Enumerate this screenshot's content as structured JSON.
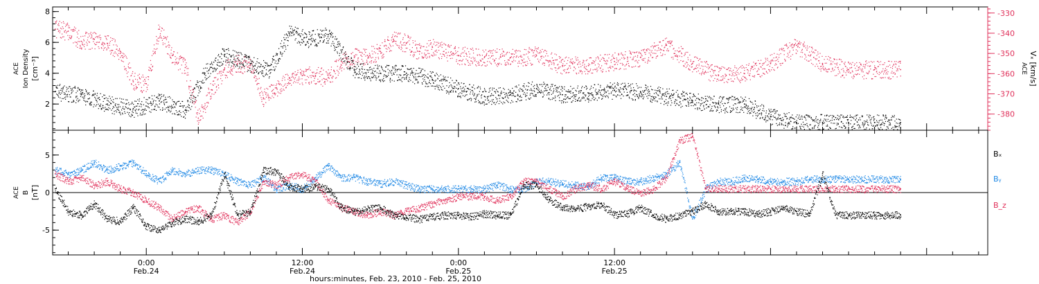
{
  "chart_data": [
    {
      "type": "scatter",
      "panel": "top",
      "ylabel": [
        "ACE",
        "Ion Density",
        "[cm⁻³]"
      ],
      "ylabel_right": [
        "ACE",
        "Vₓ [km/s]"
      ],
      "yticks": [
        2,
        4,
        6,
        8
      ],
      "ylim": [
        0.3,
        8.3
      ],
      "yticks_right": [
        -380,
        -370,
        -360,
        -350,
        -340,
        -330
      ],
      "ylim_right": [
        -388,
        -327
      ],
      "xlim": [
        -7.2,
        64.7
      ],
      "series": [
        {
          "color": "#000000",
          "axis": "left",
          "x": [
            -7,
            -5,
            -3,
            -1,
            1,
            3,
            4.5,
            6,
            8,
            9.5,
            11,
            12.5,
            14,
            16,
            18,
            20,
            22,
            24,
            26,
            28,
            30,
            32,
            34,
            36,
            38,
            40,
            42,
            44,
            46,
            48,
            50,
            52,
            54,
            56,
            58
          ],
          "y": [
            2.8,
            2.6,
            2.0,
            1.7,
            2.2,
            1.6,
            4.0,
            5.2,
            4.6,
            4.2,
            6.6,
            6.2,
            6.5,
            4.2,
            4.0,
            4.0,
            3.6,
            3.0,
            2.5,
            2.6,
            3.0,
            2.6,
            2.7,
            2.9,
            2.8,
            2.5,
            2.2,
            2.0,
            2.0,
            1.2,
            0.8,
            0.8,
            0.8,
            0.8,
            0.8
          ]
        },
        {
          "color": "#e0305a",
          "axis": "right",
          "x": [
            -7,
            -6,
            -5,
            -4,
            -3,
            -2,
            -1,
            0,
            1,
            2,
            3,
            4,
            5,
            6,
            7,
            8,
            9,
            10,
            11,
            12,
            13,
            14,
            15,
            16,
            17,
            18,
            19,
            20,
            21,
            22,
            24,
            26,
            28,
            30,
            32,
            34,
            36,
            38,
            40,
            42,
            44,
            46,
            48,
            50,
            52,
            54,
            56,
            58
          ],
          "y": [
            -338,
            -339,
            -344,
            -343,
            -345,
            -349,
            -364,
            -365,
            -338,
            -351,
            -357,
            -382,
            -368,
            -358,
            -355,
            -356,
            -372,
            -367,
            -362,
            -361,
            -361,
            -362,
            -354,
            -352,
            -351,
            -349,
            -343,
            -345,
            -349,
            -347,
            -351,
            -352,
            -352,
            -351,
            -356,
            -356,
            -354,
            -352,
            -346,
            -355,
            -361,
            -360,
            -355,
            -346,
            -355,
            -358,
            -358,
            -358
          ]
        }
      ]
    },
    {
      "type": "scatter",
      "panel": "bottom",
      "ylabel": [
        "ACE",
        "B",
        "[nT]"
      ],
      "yticks": [
        -5,
        0,
        5
      ],
      "ylim": [
        -8.3,
        8.3
      ],
      "xlim": [
        -7.2,
        64.7
      ],
      "xticks": [
        {
          "x": 0,
          "labels": [
            "0:00",
            "Feb.24"
          ]
        },
        {
          "x": 12,
          "labels": [
            "12:00",
            "Feb.24"
          ]
        },
        {
          "x": 24,
          "labels": [
            "0:00",
            "Feb.25"
          ]
        },
        {
          "x": 36,
          "labels": [
            "12:00",
            "Feb.25"
          ]
        }
      ],
      "xlabel": "hours:minutes, Feb. 23, 2010 - Feb. 25, 2010",
      "series": [
        {
          "name": "Bₓ",
          "color": "#000000",
          "x": [
            -7,
            -6,
            -5,
            -4,
            -3,
            -2,
            -1,
            0,
            1,
            2,
            3,
            4,
            5,
            6,
            7,
            8,
            9,
            10,
            11,
            12,
            13,
            14,
            15,
            16,
            17,
            18,
            19,
            20,
            21,
            22,
            23,
            24,
            25,
            26,
            27,
            28,
            29,
            30,
            31,
            32,
            33,
            34,
            35,
            36,
            37,
            38,
            39,
            40,
            41,
            42,
            43,
            44,
            45,
            46,
            47,
            48,
            49,
            50,
            51,
            52,
            53,
            54,
            55,
            56,
            57,
            58
          ],
          "y": [
            0.5,
            -2.5,
            -3.0,
            -1.5,
            -3.5,
            -3.8,
            -2.0,
            -4.5,
            -5.0,
            -4.0,
            -3.5,
            -3.8,
            -3.0,
            2.5,
            -3.0,
            -2.5,
            3.0,
            2.8,
            0.8,
            0.5,
            0.8,
            0.5,
            -2.0,
            -2.5,
            -2.2,
            -2.0,
            -3.0,
            -3.3,
            -3.5,
            -3.2,
            -3.0,
            -3.0,
            -3.2,
            -2.8,
            -3.0,
            -3.0,
            1.0,
            1.0,
            -1.0,
            -2.0,
            -2.2,
            -1.8,
            -1.5,
            -3.0,
            -2.8,
            -2.0,
            -3.0,
            -3.5,
            -3.0,
            -2.5,
            -1.5,
            -2.5,
            -2.5,
            -2.5,
            -2.8,
            -2.5,
            -2.0,
            -2.5,
            -2.8,
            2.5,
            -3.0,
            -3.0,
            -3.0,
            -3.0,
            -3.0,
            -3.0
          ]
        },
        {
          "name": "Bᵧ",
          "color": "#1e88e5",
          "x": [
            -7,
            -6,
            -5,
            -4,
            -3,
            -2,
            -1,
            0,
            1,
            2,
            3,
            4,
            5,
            6,
            7,
            8,
            9,
            10,
            11,
            12,
            13,
            14,
            15,
            16,
            17,
            18,
            19,
            20,
            21,
            22,
            23,
            24,
            25,
            26,
            27,
            28,
            29,
            30,
            31,
            32,
            33,
            34,
            35,
            36,
            37,
            38,
            39,
            40,
            41,
            42,
            43,
            44,
            45,
            46,
            47,
            48,
            49,
            50,
            51,
            52,
            53,
            54,
            55,
            56,
            57,
            58
          ],
          "y": [
            3.0,
            2.5,
            3.0,
            4.0,
            3.0,
            3.5,
            4.0,
            2.5,
            1.5,
            3.0,
            2.5,
            3.0,
            3.0,
            2.5,
            1.5,
            1.0,
            2.0,
            0.5,
            1.0,
            0.5,
            2.0,
            3.5,
            2.0,
            2.0,
            1.5,
            1.2,
            1.5,
            1.0,
            0.5,
            0.5,
            0.5,
            0.5,
            0.5,
            0.5,
            1.0,
            0.5,
            0.5,
            1.5,
            1.5,
            1.2,
            1.0,
            0.8,
            2.0,
            2.0,
            1.5,
            1.5,
            2.0,
            2.5,
            4.0,
            -3.5,
            0.5,
            1.5,
            1.5,
            2.0,
            1.8,
            1.5,
            1.5,
            1.5,
            1.8,
            1.8,
            1.8,
            1.8,
            1.8,
            1.8,
            1.8,
            1.8
          ]
        },
        {
          "name": "B_z",
          "color": "#e0305a",
          "x": [
            -7,
            -6,
            -5,
            -4,
            -3,
            -2,
            -1,
            0,
            1,
            2,
            3,
            4,
            5,
            6,
            7,
            8,
            9,
            10,
            11,
            12,
            13,
            14,
            15,
            16,
            17,
            18,
            19,
            20,
            21,
            22,
            23,
            24,
            25,
            26,
            27,
            28,
            29,
            30,
            31,
            32,
            33,
            34,
            35,
            36,
            37,
            38,
            39,
            40,
            41,
            42,
            43,
            44,
            45,
            46,
            47,
            48,
            49,
            50,
            51,
            52,
            53,
            54,
            55,
            56,
            57,
            58
          ],
          "y": [
            2.5,
            1.5,
            2.0,
            1.0,
            1.5,
            0.5,
            0.0,
            -1.0,
            -2.0,
            -3.5,
            -2.5,
            -2.0,
            -3.5,
            -3.0,
            -4.0,
            -2.5,
            1.5,
            1.0,
            2.0,
            2.5,
            1.5,
            -1.0,
            -2.0,
            -2.5,
            -3.0,
            -2.5,
            -3.0,
            -2.5,
            -2.0,
            -1.5,
            -1.0,
            -0.5,
            -0.5,
            -0.5,
            -1.0,
            -0.5,
            1.5,
            1.5,
            0.5,
            -0.5,
            0.5,
            1.0,
            0.5,
            1.5,
            0.5,
            0.0,
            0.5,
            2.0,
            7.0,
            7.5,
            0.5,
            0.5,
            0.5,
            0.5,
            0.5,
            0.5,
            0.5,
            0.5,
            0.5,
            0.5,
            0.5,
            0.5,
            0.5,
            0.5,
            0.5,
            0.5
          ]
        }
      ]
    }
  ]
}
